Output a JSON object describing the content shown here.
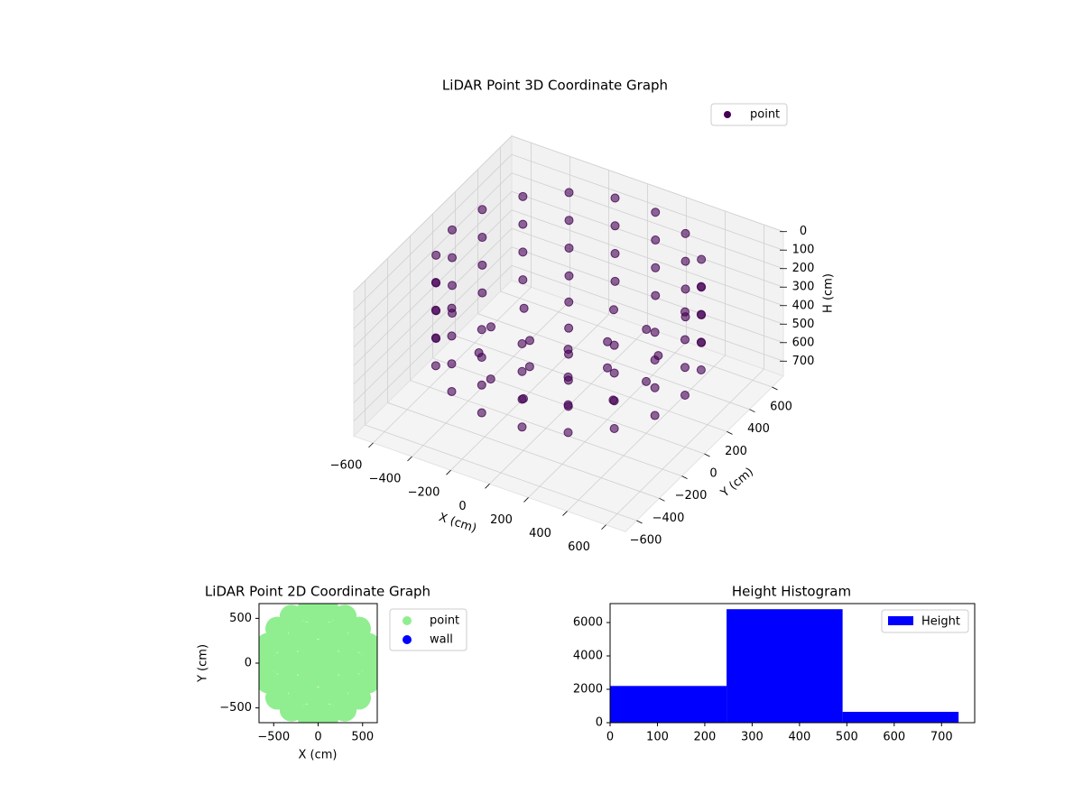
{
  "chart_data": [
    {
      "type": "scatter3d",
      "title": "LiDAR Point 3D Coordinate Graph",
      "xlabel": "X (cm)",
      "ylabel": "Y (cm)",
      "zlabel": "H (cm)",
      "xlim": [
        -700,
        700
      ],
      "ylim": [
        -700,
        700
      ],
      "zlim": [
        0,
        780
      ],
      "z_inverted": true,
      "xticks": [
        {
          "value": -600,
          "label": "−600"
        },
        {
          "value": -400,
          "label": "−400"
        },
        {
          "value": -200,
          "label": "−200"
        },
        0,
        200,
        400,
        600
      ],
      "yticks": [
        {
          "value": -600,
          "label": "−600"
        },
        {
          "value": -400,
          "label": "−400"
        },
        {
          "value": -200,
          "label": "−200"
        },
        0,
        200,
        400,
        600
      ],
      "zticks": [
        0,
        100,
        200,
        300,
        400,
        500,
        600,
        700
      ],
      "grid": true,
      "legend": "upper right",
      "series": [
        {
          "name": "point",
          "color": "#440154",
          "x": [
            600,
            564,
            460,
            300,
            104,
            -104,
            -300,
            -460,
            -564,
            -600,
            -564,
            -460,
            -300,
            -104,
            104,
            300,
            460,
            564,
            600,
            564,
            460,
            300,
            104,
            -104,
            -300,
            -460,
            -564,
            -600,
            -564,
            -460,
            -300,
            -104,
            104,
            300,
            460,
            564,
            600,
            564,
            460,
            300,
            104,
            -104,
            -300,
            -460,
            -564,
            -600,
            -564,
            -460,
            -300,
            -104,
            104,
            300,
            460,
            564,
            600,
            564,
            460,
            300,
            104,
            -104,
            -300,
            -460,
            -564,
            -600,
            -564,
            -460,
            -300,
            -104,
            104,
            300,
            460,
            564,
            400,
            346,
            200,
            0,
            -200,
            -346,
            -400,
            -346,
            -200,
            0,
            200,
            346,
            200,
            100,
            -100,
            -200,
            -100,
            100,
            0
          ],
          "y": [
            0,
            205,
            386,
            520,
            591,
            591,
            520,
            386,
            205,
            0,
            -205,
            -386,
            -520,
            -591,
            -591,
            -520,
            -386,
            -205,
            0,
            205,
            386,
            520,
            591,
            591,
            520,
            386,
            205,
            0,
            -205,
            -386,
            -520,
            -591,
            -591,
            -520,
            -386,
            -205,
            0,
            205,
            386,
            520,
            591,
            591,
            520,
            386,
            205,
            0,
            -205,
            -386,
            -520,
            -591,
            -591,
            -520,
            -386,
            -205,
            0,
            205,
            386,
            520,
            591,
            591,
            520,
            386,
            205,
            0,
            -205,
            -386,
            -520,
            -591,
            -591,
            -520,
            -386,
            -205,
            0,
            200,
            346,
            400,
            346,
            200,
            0,
            -200,
            -346,
            -400,
            -346,
            -200,
            0,
            173,
            173,
            0,
            -173,
            -173,
            0
          ],
          "z": [
            50,
            50,
            50,
            50,
            50,
            50,
            50,
            50,
            50,
            50,
            50,
            50,
            50,
            50,
            50,
            50,
            50,
            50,
            200,
            200,
            200,
            200,
            200,
            200,
            200,
            200,
            200,
            200,
            200,
            200,
            200,
            200,
            200,
            200,
            200,
            200,
            350,
            350,
            350,
            350,
            350,
            350,
            350,
            350,
            350,
            350,
            350,
            350,
            350,
            350,
            350,
            350,
            350,
            350,
            500,
            500,
            500,
            500,
            500,
            500,
            500,
            500,
            500,
            500,
            500,
            500,
            500,
            500,
            500,
            500,
            500,
            500,
            500,
            500,
            500,
            500,
            500,
            500,
            500,
            500,
            500,
            500,
            500,
            500,
            500,
            500,
            500,
            500,
            500,
            500,
            500
          ]
        }
      ]
    },
    {
      "type": "scatter",
      "title": "LiDAR Point 2D Coordinate Graph",
      "xlabel": "X (cm)",
      "ylabel": "Y (cm)",
      "xlim": [
        -665,
        665
      ],
      "ylim": [
        -665,
        665
      ],
      "xticks": [
        {
          "value": -500,
          "label": "−500"
        },
        0,
        500
      ],
      "yticks": [
        {
          "value": -500,
          "label": "−500"
        },
        0,
        500
      ],
      "legend": "outside upper right",
      "series": [
        {
          "name": "point",
          "color": "lightgreen"
        },
        {
          "name": "wall",
          "color": "blue"
        }
      ]
    },
    {
      "type": "histogram",
      "title": "Height Histogram",
      "label": "Height",
      "color": "blue",
      "bins": [
        0,
        246,
        491,
        736
      ],
      "values": [
        2200,
        6800,
        650
      ],
      "xlim": [
        0,
        770
      ],
      "ylim": [
        0,
        7135
      ],
      "xticks": [
        0,
        100,
        200,
        300,
        400,
        500,
        600,
        700
      ],
      "yticks": [
        0,
        2000,
        4000,
        6000
      ],
      "legend": "upper right"
    }
  ]
}
